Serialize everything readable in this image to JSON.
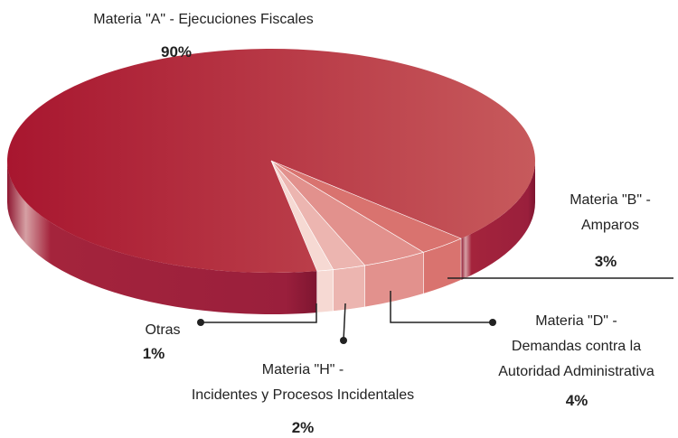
{
  "chart_data": {
    "type": "pie3d",
    "categories": [
      "Materia \"A\" - Ejecuciones Fiscales",
      "Materia \"B\" -\nAmparos",
      "Materia \"D\" -\nDemandas contra la\nAutoridad Administrativa",
      "Materia \"H\" -\nIncidentes y Procesos Incidentales",
      "Otras"
    ],
    "values": [
      90,
      3,
      4,
      2,
      1
    ],
    "value_labels": [
      "90%",
      "3%",
      "4%",
      "2%",
      "1%"
    ],
    "colors": [
      "#b42038",
      "#d9736f",
      "#e2918d",
      "#ecb5b0",
      "#f6d9d3"
    ]
  }
}
